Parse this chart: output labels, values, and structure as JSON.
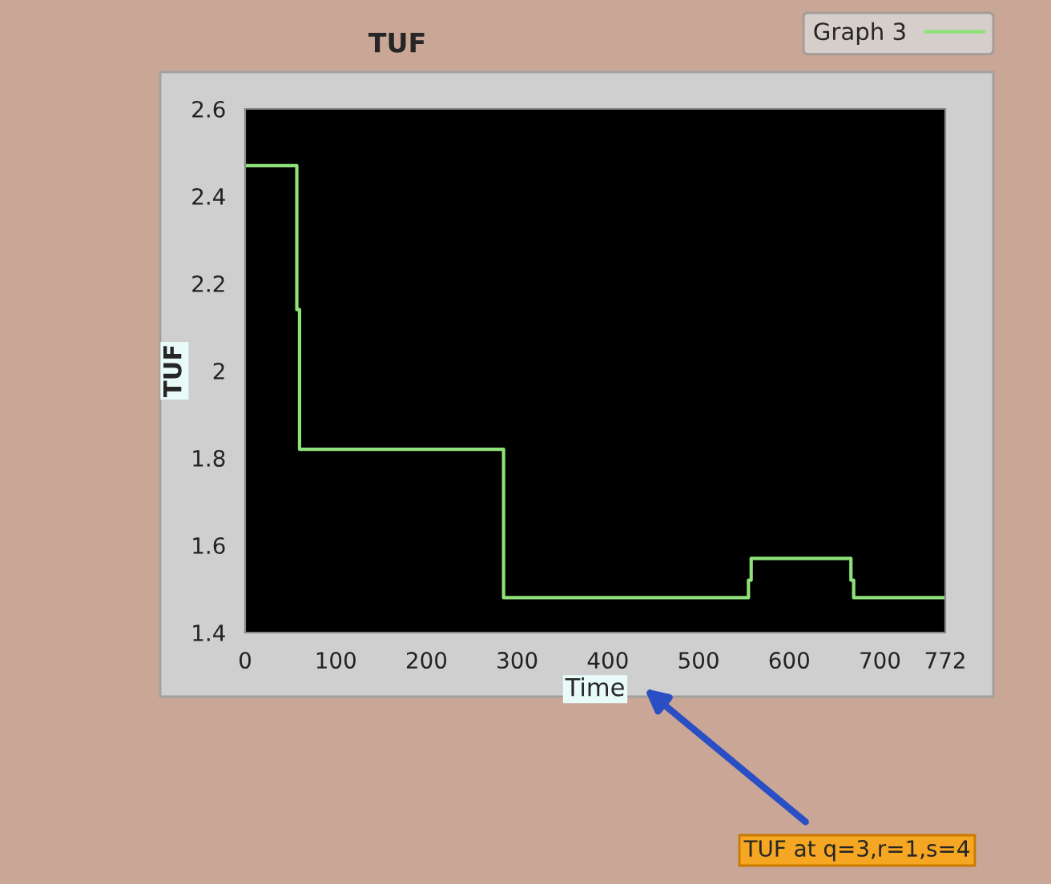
{
  "chart_data": {
    "type": "step",
    "title": "TUF",
    "xlabel": "Time",
    "ylabel": "TUF",
    "series": [
      {
        "name": "Graph 3",
        "color": "#8fe27a",
        "x": [
          0,
          57,
          60,
          285,
          555,
          558,
          668,
          671,
          772
        ],
        "values": [
          2.47,
          2.14,
          1.82,
          1.48,
          1.52,
          1.57,
          1.52,
          1.48,
          1.48
        ]
      }
    ],
    "xlim": [
      0,
      772
    ],
    "xticks": [
      0,
      100,
      200,
      300,
      400,
      500,
      600,
      700,
      772
    ],
    "ylim": [
      1.4,
      2.6
    ],
    "yticks": [
      1.4,
      1.6,
      1.8,
      2,
      2.2,
      2.4,
      2.6
    ],
    "grid": false,
    "legend": "top right",
    "line_style": "solid",
    "marker": "none",
    "annotations": [
      "TUF at q=3,r=1,s=4"
    ]
  }
}
